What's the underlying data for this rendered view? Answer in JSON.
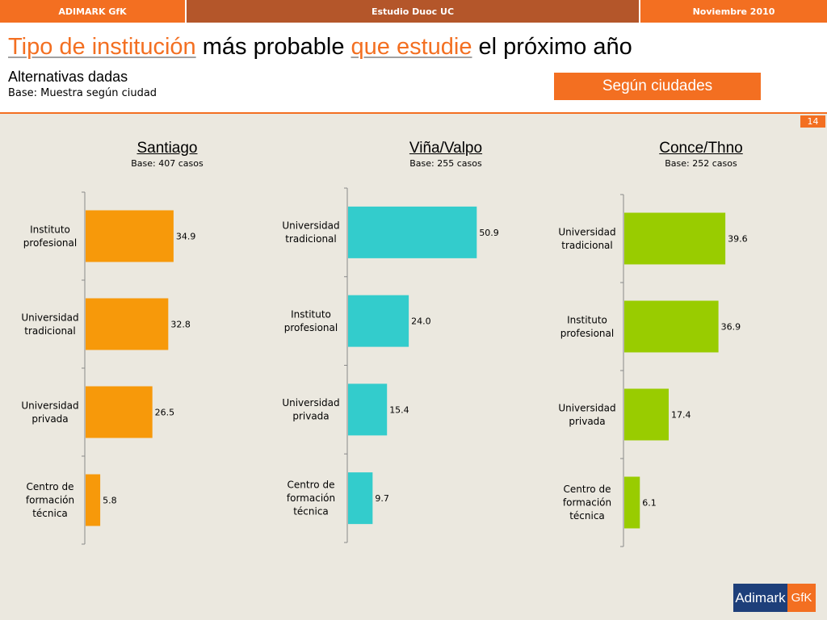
{
  "topbar": {
    "left": "ADIMARK GfK",
    "center": "Estudio Duoc UC",
    "right": "Noviembre 2010"
  },
  "header": {
    "title_part1": "Tipo de institución",
    "title_part2": " más probable ",
    "title_part3": "que estudie",
    "title_part4": " el próximo año",
    "subtitle": "Alternativas dadas",
    "base": "Base: Muestra según ciudad",
    "segun_button": "Según ciudades",
    "page_number": "14"
  },
  "colors": {
    "orange": "#f7990a",
    "teal": "#33cccc",
    "green": "#99cc00",
    "accent": "#f36f21"
  },
  "logo": {
    "main": "Adimark",
    "suffix": "GfK"
  },
  "chart_data": [
    {
      "type": "bar",
      "orientation": "horizontal",
      "title": "Santiago",
      "subtitle": "Base: 407 casos",
      "categories": [
        "Instituto\nprofesional",
        "Universidad\ntradicional",
        "Universidad\nprivada",
        "Centro de\nformación\ntécnica"
      ],
      "values": [
        34.9,
        32.8,
        26.5,
        5.8
      ],
      "color": "#f7990a"
    },
    {
      "type": "bar",
      "orientation": "horizontal",
      "title": "Viña/Valpo",
      "subtitle": "Base: 255 casos",
      "categories": [
        "Universidad\ntradicional",
        "Instituto\nprofesional",
        "Universidad\nprivada",
        "Centro de\nformación\ntécnica"
      ],
      "values": [
        50.9,
        24.0,
        15.4,
        9.7
      ],
      "color": "#33cccc"
    },
    {
      "type": "bar",
      "orientation": "horizontal",
      "title": "Conce/Thno",
      "subtitle": "Base: 252 casos",
      "categories": [
        "Universidad\ntradicional",
        "Instituto\nprofesional",
        "Universidad\nprivada",
        "Centro de\nformación\ntécnica"
      ],
      "values": [
        39.6,
        36.9,
        17.4,
        6.1
      ],
      "color": "#99cc00"
    }
  ]
}
